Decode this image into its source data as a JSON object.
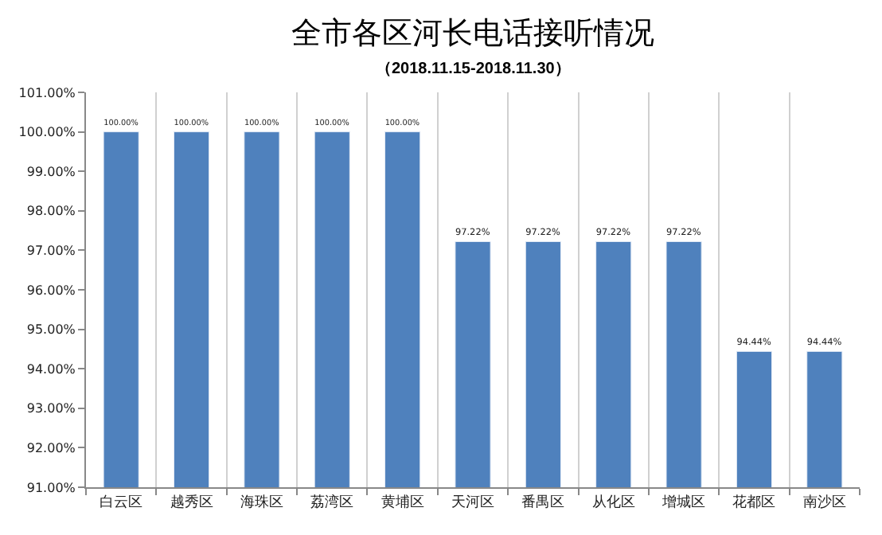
{
  "chart_data": {
    "type": "bar",
    "title": "全市各区河长电话接听情况",
    "subtitle": "（2018.11.15-2018.11.30）",
    "categories": [
      "白云区",
      "越秀区",
      "海珠区",
      "荔湾区",
      "黄埔区",
      "天河区",
      "番禺区",
      "从化区",
      "增城区",
      "花都区",
      "南沙区"
    ],
    "values": [
      100,
      100,
      100,
      100,
      100,
      97.22,
      97.22,
      97.22,
      97.22,
      94.44,
      94.44
    ],
    "value_labels": [
      "100.00%",
      "100.00%",
      "100.00%",
      "100.00%",
      "100.00%",
      "97.22%",
      "97.22%",
      "97.22%",
      "97.22%",
      "94.44%",
      "94.44%"
    ],
    "color": "#4f81bd",
    "ylim": [
      91,
      101
    ],
    "yticks": [
      {
        "value": 91,
        "label": "91.00%"
      },
      {
        "value": 92,
        "label": "92.00%"
      },
      {
        "value": 93,
        "label": "93.00%"
      },
      {
        "value": 94,
        "label": "94.00%"
      },
      {
        "value": 95,
        "label": "95.00%"
      },
      {
        "value": 96,
        "label": "96.00%"
      },
      {
        "value": 97,
        "label": "97.00%"
      },
      {
        "value": 98,
        "label": "98.00%"
      },
      {
        "value": 99,
        "label": "99.00%"
      },
      {
        "value": 100,
        "label": "100.00%"
      },
      {
        "value": 101,
        "label": "101.00%"
      }
    ],
    "grid": "x"
  }
}
